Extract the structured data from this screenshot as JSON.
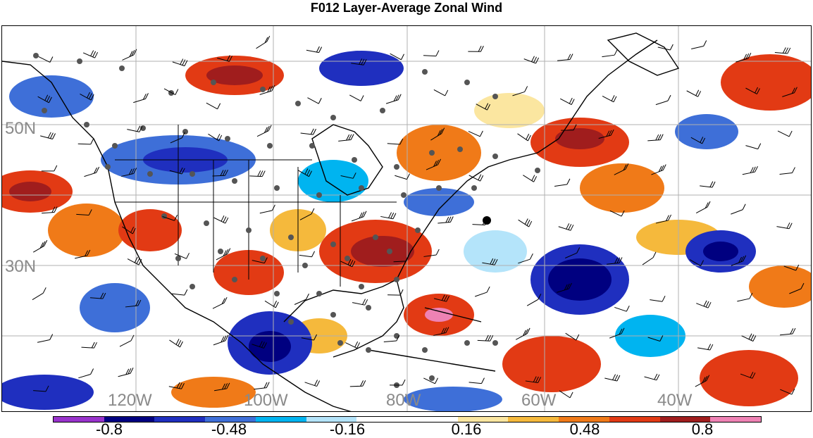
{
  "title": "F012 Layer-Average Zonal Wind",
  "map": {
    "lat_labels": [
      "50N",
      "30N"
    ],
    "lon_labels": [
      "120W",
      "100W",
      "80W",
      "60W",
      "40W"
    ],
    "coastline_color": "#000000",
    "grid_color": "#b0b0b0",
    "station_color": "#555555",
    "barb_color": "#000000"
  },
  "colorbar": {
    "labels": [
      "-0.8",
      "-0.48",
      "-0.16",
      "0.16",
      "0.48",
      "0.8"
    ],
    "colors": [
      "#9933cc",
      "#000080",
      "#1f2fbf",
      "#3e6fd8",
      "#00b4f0",
      "#b4e4fa",
      "#ffffff",
      "#ffffff",
      "#fbe6a0",
      "#f5b93c",
      "#f07a18",
      "#e23a14",
      "#a01d1d",
      "#ee82b4"
    ]
  }
}
